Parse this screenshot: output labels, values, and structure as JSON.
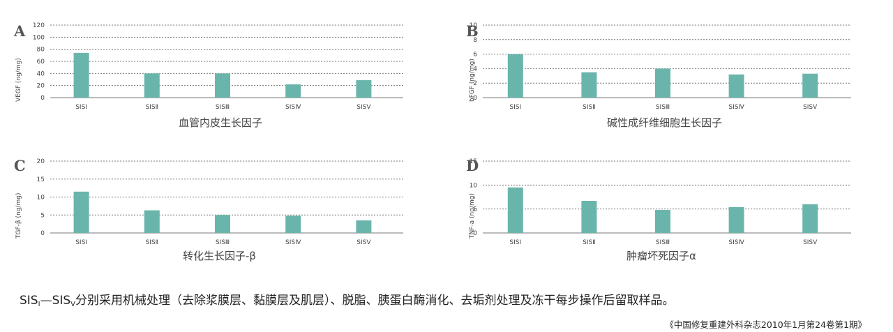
{
  "colors": {
    "bar": "#6ab5ab",
    "grid": "#777777",
    "text": "#444444"
  },
  "caption": {
    "start": "SIS",
    "sub_start": "Ⅰ",
    "dash": "—SIS",
    "sub_end": "Ⅴ",
    "rest": "分别采用机械处理（去除浆膜层、黏膜层及肌层）、脱脂、胰蛋白酶消化、去垢剂处理及冻干每步操作后留取样品。"
  },
  "source": "《中国修复重建外科杂志2010年1月第24卷第1期》",
  "chart_data": [
    {
      "panel": "A",
      "type": "bar",
      "title": "血管内皮生长因子",
      "ylabel": "VEGF (ng/mg)",
      "categories": [
        "SISⅠ",
        "SISⅡ",
        "SISⅢ",
        "SISⅣ",
        "SISⅤ"
      ],
      "values": [
        74,
        40,
        40,
        22,
        29
      ],
      "ylim": [
        0,
        120
      ],
      "yticks": [
        0,
        20,
        40,
        60,
        80,
        100,
        120
      ],
      "grid": true
    },
    {
      "panel": "B",
      "type": "bar",
      "title": "碱性成纤维细胞生长因子",
      "ylabel": "bFGF (ng/mg)",
      "categories": [
        "SISⅠ",
        "SISⅡ",
        "SISⅢ",
        "SISⅣ",
        "SISⅤ"
      ],
      "values": [
        6.0,
        3.5,
        4.0,
        3.2,
        3.3
      ],
      "ylim": [
        0,
        10
      ],
      "yticks": [
        0,
        2,
        4,
        6,
        8,
        10
      ],
      "grid": true
    },
    {
      "panel": "C",
      "type": "bar",
      "title": "转化生长因子-β",
      "ylabel": "TGF-β (ng/mg)",
      "categories": [
        "SISⅠ",
        "SISⅡ",
        "SISⅢ",
        "SISⅣ",
        "SISⅤ"
      ],
      "values": [
        11.5,
        6.3,
        5.0,
        4.8,
        3.5
      ],
      "ylim": [
        0,
        20
      ],
      "yticks": [
        0,
        5,
        10,
        15,
        20
      ],
      "grid": true
    },
    {
      "panel": "D",
      "type": "bar",
      "title": "肿瘤坏死因子α",
      "ylabel": "TNF-a (ng/mg)",
      "categories": [
        "SISⅠ",
        "SISⅡ",
        "SISⅢ",
        "SISⅣ",
        "SISⅤ"
      ],
      "values": [
        9.5,
        6.7,
        4.8,
        5.4,
        6.0
      ],
      "ylim": [
        0,
        15
      ],
      "yticks": [
        0,
        5,
        10,
        15
      ],
      "grid": true
    }
  ]
}
